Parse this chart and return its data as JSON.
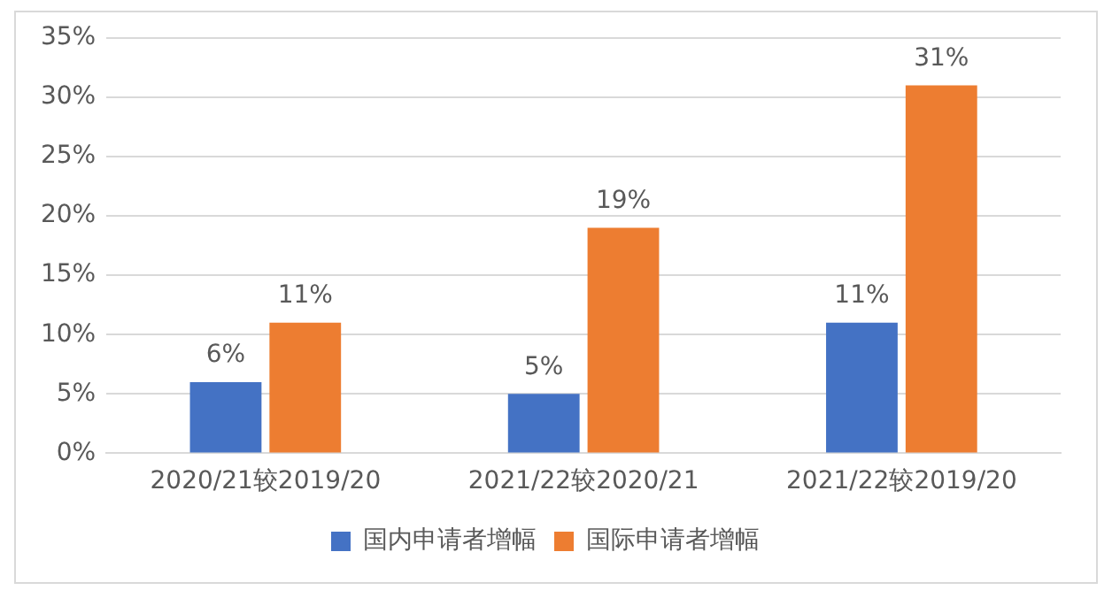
{
  "chart_data": {
    "type": "bar",
    "categories": [
      "2020/21较2019/20",
      "2021/22较2020/21",
      "2021/22较2019/20"
    ],
    "series": [
      {
        "name": "国内申请者增幅",
        "color": "#4472c4",
        "values": [
          6,
          5,
          11
        ],
        "value_labels": [
          "6%",
          "5%",
          "11%"
        ]
      },
      {
        "name": "国际申请者增幅",
        "color": "#ed7d31",
        "values": [
          11,
          19,
          31
        ],
        "value_labels": [
          "11%",
          "19%",
          "31%"
        ]
      }
    ],
    "ylim": [
      0,
      35
    ],
    "yticks": [
      {
        "value": 0,
        "label": "0%"
      },
      {
        "value": 5,
        "label": "5%"
      },
      {
        "value": 10,
        "label": "10%"
      },
      {
        "value": 15,
        "label": "15%"
      },
      {
        "value": 20,
        "label": "20%"
      },
      {
        "value": 25,
        "label": "25%"
      },
      {
        "value": 30,
        "label": "30%"
      },
      {
        "value": 35,
        "label": "35%"
      }
    ],
    "grid": "y",
    "legend": "bottom"
  }
}
